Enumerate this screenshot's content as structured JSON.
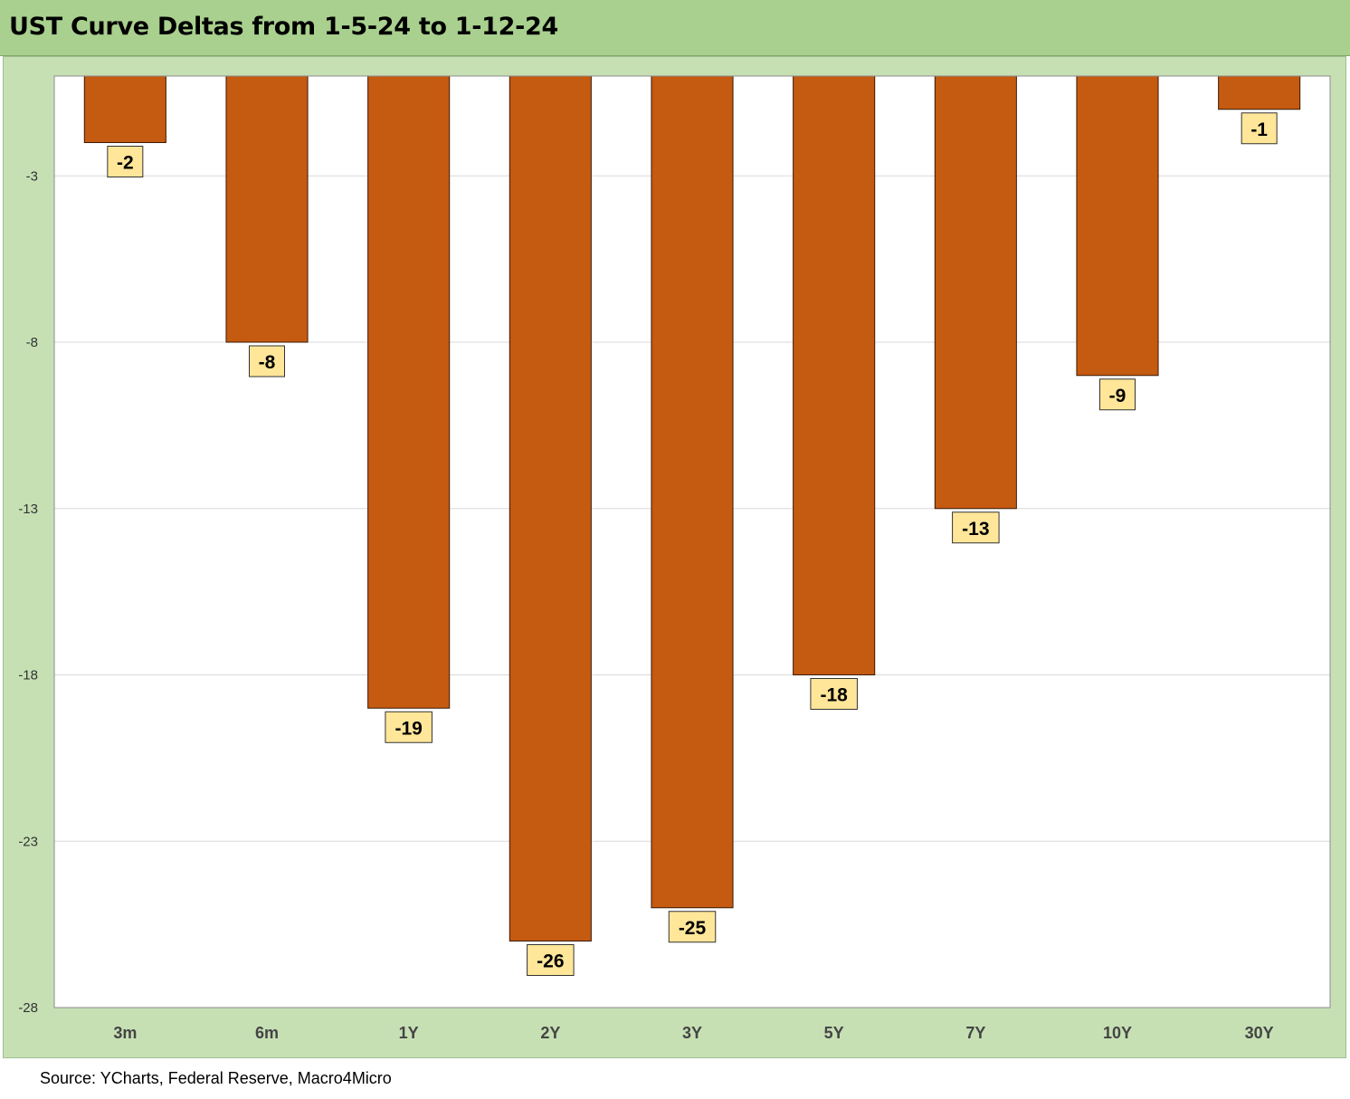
{
  "title": "UST Curve Deltas from 1-5-24 to 1-12-24",
  "source": "Source: YCharts, Federal Reserve, Macro4Micro",
  "chart_data": {
    "type": "bar",
    "title": "UST Curve Deltas from 1-5-24 to 1-12-24",
    "categories": [
      "3m",
      "6m",
      "1Y",
      "2Y",
      "3Y",
      "5Y",
      "7Y",
      "10Y",
      "30Y"
    ],
    "values": [
      -2,
      -8,
      -19,
      -26,
      -25,
      -18,
      -13,
      -9,
      -1
    ],
    "data_labels": [
      "-2",
      "-8",
      "-19",
      "-26",
      "-25",
      "-18",
      "-13",
      "-9",
      "-1"
    ],
    "ylim": [
      -28,
      0
    ],
    "yticks": [
      -3,
      -8,
      -13,
      -18,
      -23,
      -28
    ],
    "xlabel": "",
    "ylabel": "",
    "grid": true,
    "legend": "none",
    "colors": {
      "bar": "#c55a11",
      "label_box": "#ffe699",
      "plot_bg": "#ffffff",
      "frame_bg": "#c6e0b4",
      "title_bg": "#a9d08e"
    }
  }
}
